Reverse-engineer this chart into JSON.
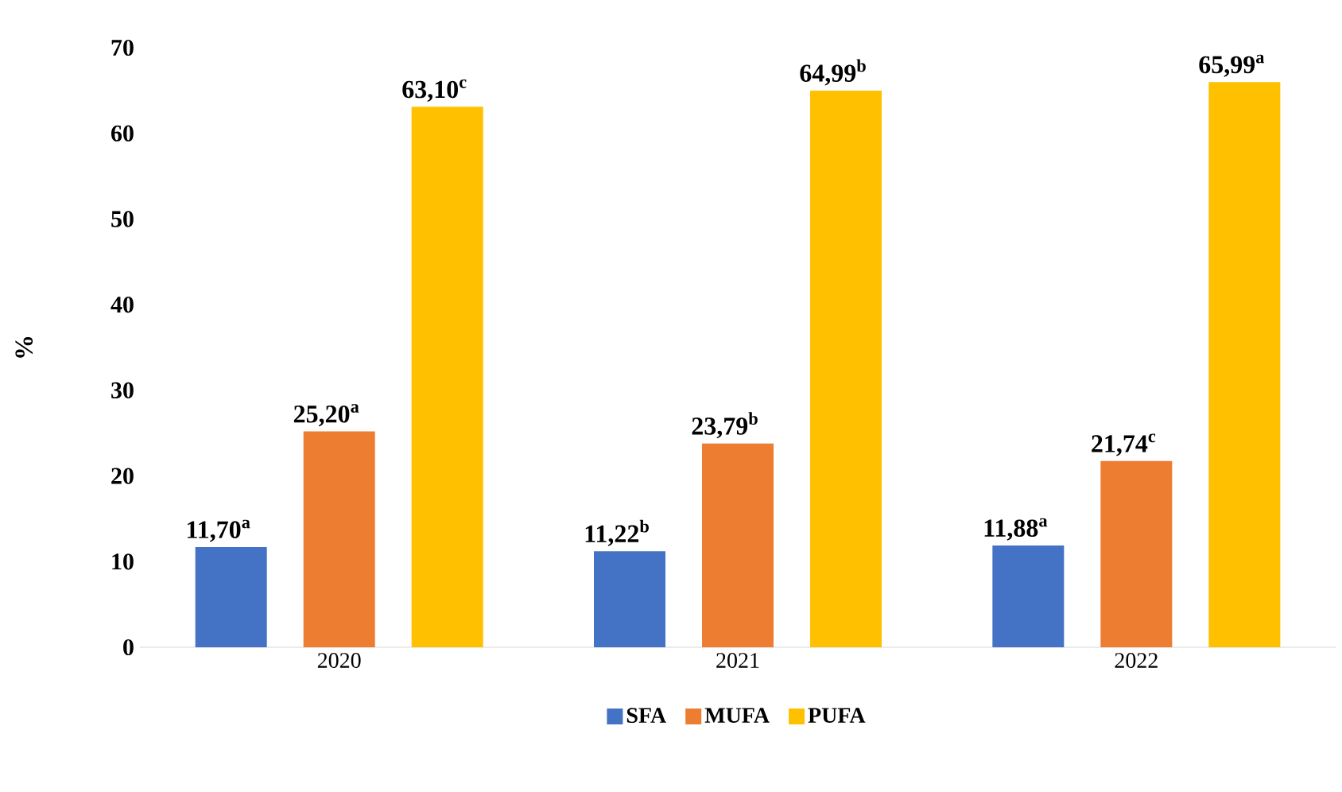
{
  "chart_data": {
    "type": "bar",
    "ylabel": "%",
    "categories": [
      "2020",
      "2021",
      "2022"
    ],
    "series": [
      {
        "name": "SFA",
        "color": "#4472c4",
        "values": [
          11.7,
          11.22,
          11.88
        ],
        "value_labels": [
          "11,70$^{a}$",
          "11,22$^{b}$",
          "11,88$^{a}$"
        ]
      },
      {
        "name": "MUFA",
        "color": "#ed7d31",
        "values": [
          25.2,
          23.79,
          21.74
        ],
        "value_labels": [
          "25,20$^{a}$",
          "23,79$^{b}$",
          "21,74$^{c}$"
        ]
      },
      {
        "name": "PUFA",
        "color": "#ffc000",
        "values": [
          63.1,
          64.99,
          65.99
        ],
        "value_labels": [
          "63,10$^{c}$",
          "64,99$^{b}$",
          "65,99$^{a}$"
        ]
      }
    ],
    "ylim": [
      0,
      70
    ],
    "yticks": [
      0,
      10,
      20,
      30,
      40,
      50,
      60,
      70
    ],
    "grid": false,
    "legend": "bottom"
  }
}
